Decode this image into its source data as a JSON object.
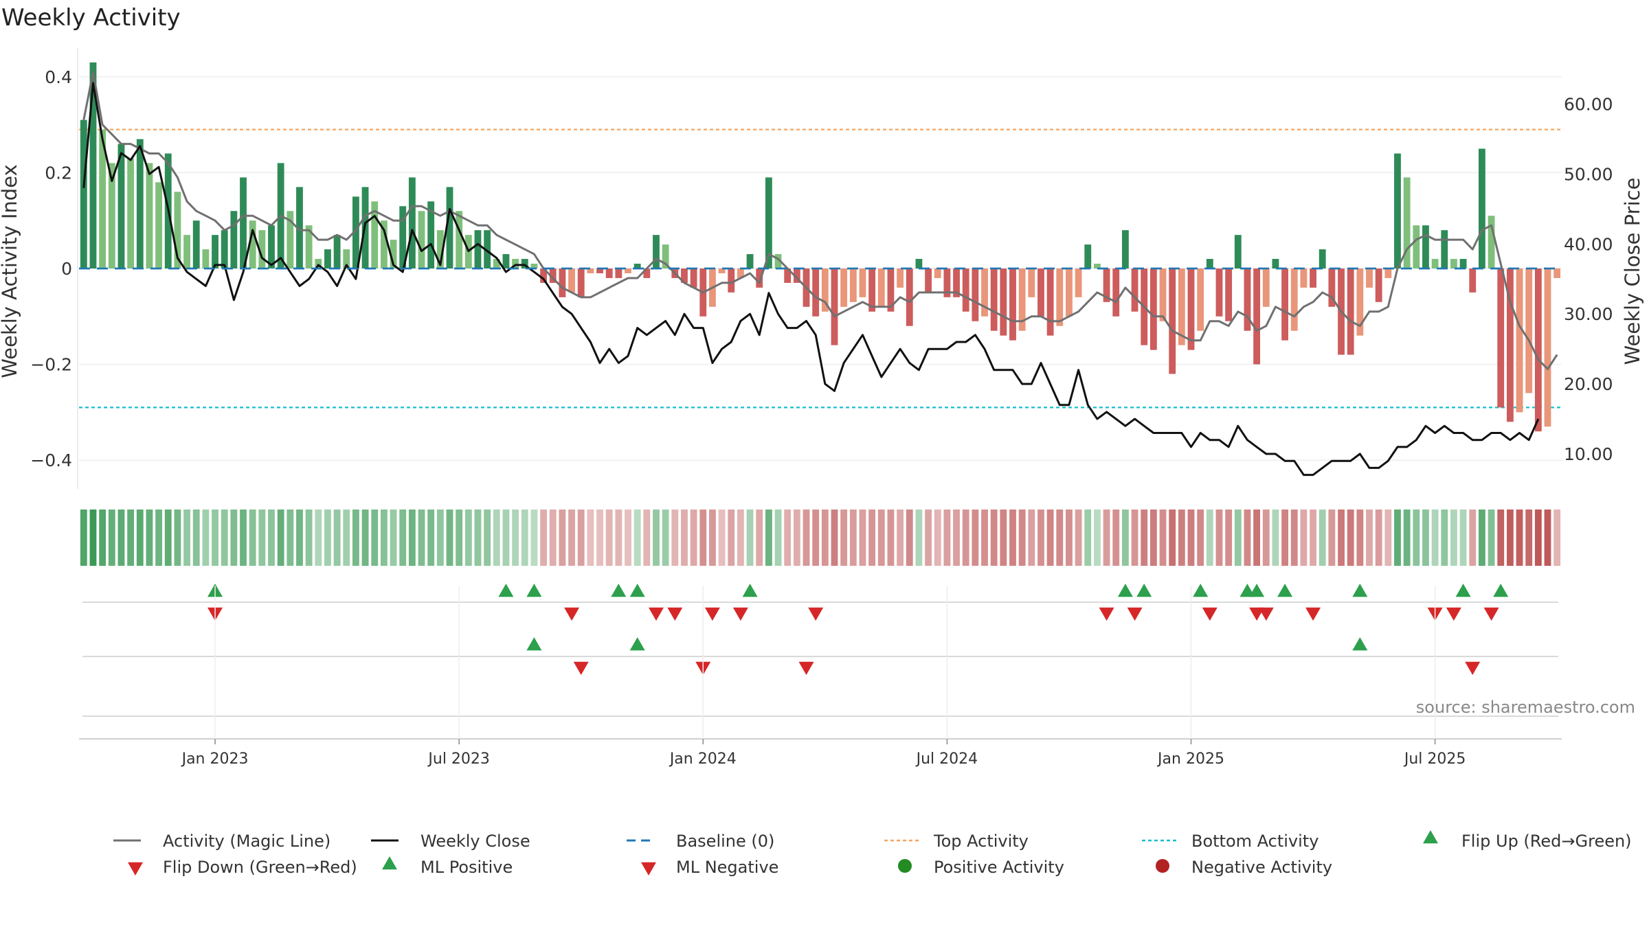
{
  "chart_data": {
    "type": "bar",
    "title": "Weekly Activity",
    "source": "source: sharemaestro.com",
    "ylabel_left": "Weekly Activity Index",
    "ylabel_right": "Weekly Close Price",
    "ylim_left": [
      -0.46,
      0.46
    ],
    "ylim_right": [
      5,
      68
    ],
    "yticks_left": [
      {
        "v": 0.4,
        "label": "0.4"
      },
      {
        "v": 0.2,
        "label": "0.2"
      },
      {
        "v": 0,
        "label": "0"
      },
      {
        "v": -0.2,
        "label": "−0.2"
      },
      {
        "v": -0.4,
        "label": "−0.4"
      }
    ],
    "yticks_right": [
      {
        "v": 60,
        "label": "60.00"
      },
      {
        "v": 50,
        "label": "50.00"
      },
      {
        "v": 40,
        "label": "40.00"
      },
      {
        "v": 30,
        "label": "30.00"
      },
      {
        "v": 20,
        "label": "20.00"
      },
      {
        "v": 10,
        "label": "10.00"
      }
    ],
    "xticks": [
      {
        "week": 14.5,
        "label": "Jan 2023"
      },
      {
        "week": 40.5,
        "label": "Jul 2023"
      },
      {
        "week": 66.5,
        "label": "Jan 2024"
      },
      {
        "week": 92.5,
        "label": "Jul 2024"
      },
      {
        "week": 118.5,
        "label": "Jan 2025"
      },
      {
        "week": 144.5,
        "label": "Jul 2025"
      }
    ],
    "top_activity": 0.29,
    "bottom_activity": -0.29,
    "baseline": 0,
    "weekly_activity": [
      0.31,
      0.43,
      0.29,
      0.22,
      0.26,
      0.23,
      0.27,
      0.22,
      0.18,
      0.24,
      0.16,
      0.07,
      0.1,
      0.04,
      0.07,
      0.08,
      0.12,
      0.19,
      0.1,
      0.08,
      0.09,
      0.22,
      0.12,
      0.17,
      0.09,
      0.02,
      0.04,
      0.07,
      0.04,
      0.15,
      0.17,
      0.14,
      0.1,
      0.06,
      0.13,
      0.19,
      0.12,
      0.14,
      0.08,
      0.17,
      0.12,
      0.07,
      0.08,
      0.08,
      0.02,
      0.03,
      0.02,
      0.02,
      0.01,
      -0.03,
      -0.03,
      -0.06,
      -0.05,
      -0.06,
      -0.01,
      -0.01,
      -0.02,
      -0.02,
      -0.01,
      0.01,
      -0.02,
      0.07,
      0.05,
      -0.02,
      -0.03,
      -0.04,
      -0.1,
      -0.08,
      -0.01,
      -0.05,
      -0.02,
      0.03,
      -0.04,
      0.19,
      0.03,
      -0.03,
      -0.03,
      -0.08,
      -0.1,
      -0.09,
      -0.16,
      -0.08,
      -0.07,
      -0.06,
      -0.09,
      -0.08,
      -0.09,
      -0.04,
      -0.12,
      0.02,
      -0.05,
      -0.02,
      -0.06,
      -0.06,
      -0.09,
      -0.11,
      -0.1,
      -0.13,
      -0.14,
      -0.15,
      -0.13,
      -0.06,
      -0.1,
      -0.14,
      -0.12,
      -0.1,
      -0.06,
      0.05,
      0.01,
      -0.07,
      -0.1,
      0.08,
      -0.09,
      -0.16,
      -0.17,
      -0.11,
      -0.22,
      -0.16,
      -0.17,
      -0.13,
      0.02,
      -0.1,
      -0.11,
      0.07,
      -0.13,
      -0.2,
      -0.08,
      0.02,
      -0.15,
      -0.13,
      -0.04,
      -0.04,
      0.04,
      -0.08,
      -0.18,
      -0.18,
      -0.14,
      -0.04,
      -0.07,
      -0.02,
      0.24,
      0.19,
      0.09,
      0.09,
      0.02,
      0.08,
      0.02,
      0.02,
      -0.05,
      0.25,
      0.11,
      -0.29,
      -0.32,
      -0.3,
      -0.26,
      -0.34,
      -0.33,
      -0.02
    ],
    "magic_line": [
      0.31,
      0.41,
      0.3,
      0.28,
      0.26,
      0.26,
      0.25,
      0.24,
      0.24,
      0.22,
      0.19,
      0.14,
      0.12,
      0.11,
      0.1,
      0.08,
      0.09,
      0.11,
      0.11,
      0.1,
      0.09,
      0.11,
      0.1,
      0.08,
      0.08,
      0.06,
      0.06,
      0.07,
      0.06,
      0.08,
      0.11,
      0.12,
      0.11,
      0.1,
      0.1,
      0.13,
      0.13,
      0.12,
      0.11,
      0.12,
      0.11,
      0.1,
      0.09,
      0.09,
      0.07,
      0.06,
      0.05,
      0.04,
      0.03,
      0.0,
      -0.02,
      -0.04,
      -0.05,
      -0.06,
      -0.06,
      -0.05,
      -0.04,
      -0.03,
      -0.02,
      -0.02,
      0.0,
      0.02,
      0.01,
      -0.01,
      -0.03,
      -0.04,
      -0.05,
      -0.04,
      -0.03,
      -0.03,
      -0.02,
      -0.01,
      -0.03,
      0.03,
      0.02,
      0.0,
      -0.02,
      -0.04,
      -0.06,
      -0.07,
      -0.1,
      -0.09,
      -0.08,
      -0.07,
      -0.08,
      -0.08,
      -0.08,
      -0.06,
      -0.07,
      -0.05,
      -0.05,
      -0.05,
      -0.05,
      -0.05,
      -0.06,
      -0.07,
      -0.08,
      -0.09,
      -0.1,
      -0.11,
      -0.11,
      -0.1,
      -0.1,
      -0.11,
      -0.11,
      -0.1,
      -0.09,
      -0.07,
      -0.05,
      -0.06,
      -0.07,
      -0.04,
      -0.06,
      -0.08,
      -0.1,
      -0.1,
      -0.13,
      -0.14,
      -0.15,
      -0.15,
      -0.11,
      -0.11,
      -0.12,
      -0.09,
      -0.1,
      -0.13,
      -0.12,
      -0.08,
      -0.09,
      -0.1,
      -0.08,
      -0.07,
      -0.05,
      -0.06,
      -0.09,
      -0.11,
      -0.12,
      -0.09,
      -0.09,
      -0.08,
      0.0,
      0.04,
      0.06,
      0.07,
      0.06,
      0.06,
      0.06,
      0.06,
      0.04,
      0.08,
      0.09,
      0.01,
      -0.07,
      -0.12,
      -0.15,
      -0.19,
      -0.21,
      -0.18
    ],
    "weekly_close": [
      48,
      63,
      55,
      49,
      53,
      52,
      54,
      50,
      51,
      45,
      38,
      36,
      35,
      34,
      37,
      37,
      32,
      36,
      42,
      38,
      37,
      38,
      36,
      34,
      35,
      37,
      36,
      34,
      37,
      35,
      43,
      44,
      42,
      37,
      36,
      42,
      39,
      40,
      37,
      45,
      42,
      39,
      40,
      39,
      38,
      36,
      37,
      37,
      36,
      35,
      33,
      31,
      30,
      28,
      26,
      23,
      25,
      23,
      24,
      28,
      27,
      28,
      29,
      27,
      30,
      28,
      28,
      23,
      25,
      26,
      29,
      30,
      27,
      33,
      30,
      28,
      28,
      29,
      27,
      20,
      19,
      23,
      25,
      27,
      24,
      21,
      23,
      25,
      23,
      22,
      25,
      25,
      25,
      26,
      26,
      27,
      25,
      22,
      22,
      22,
      20,
      20,
      23,
      20,
      17,
      17,
      22,
      17,
      15,
      16,
      15,
      14,
      15,
      14,
      13,
      13,
      13,
      13,
      11,
      13,
      12,
      12,
      11,
      14,
      12,
      11,
      10,
      10,
      9,
      9,
      7,
      7,
      8,
      9,
      9,
      9,
      10,
      8,
      8,
      9,
      11,
      11,
      12,
      14,
      13,
      14,
      13,
      13,
      12,
      12,
      13,
      13,
      12,
      13,
      12,
      15
    ]
  },
  "strip": {
    "row1_up": [
      14,
      45,
      48,
      57,
      59,
      71,
      111,
      113,
      119,
      124,
      125,
      128,
      136,
      147,
      151
    ],
    "row1_down": [
      14,
      52,
      61,
      63,
      67,
      70,
      78,
      109,
      112,
      120,
      125,
      126,
      131,
      144,
      146,
      150
    ],
    "row2_up": [
      48,
      59,
      136
    ],
    "row2_down": [
      53,
      66,
      77,
      148
    ]
  },
  "legend": [
    {
      "key": "magic",
      "label": "Activity (Magic Line)"
    },
    {
      "key": "close",
      "label": "Weekly Close"
    },
    {
      "key": "baseline",
      "label": "Baseline (0)"
    },
    {
      "key": "top",
      "label": "Top Activity"
    },
    {
      "key": "bottom",
      "label": "Bottom Activity"
    },
    {
      "key": "flipup",
      "label": "Flip Up (Red→Green)"
    },
    {
      "key": "flipdown",
      "label": "Flip Down (Green→Red)"
    },
    {
      "key": "mlpos",
      "label": "ML Positive"
    },
    {
      "key": "mlneg",
      "label": "ML Negative"
    },
    {
      "key": "posact",
      "label": "Positive Activity"
    },
    {
      "key": "negact",
      "label": "Negative Activity"
    }
  ],
  "colors": {
    "green_dark": "#2e8b57",
    "green_light": "#7fbf7b",
    "red_dark": "#cd5c5c",
    "red_light": "#e9967a",
    "magic_line": "#707070",
    "close_line": "#111111",
    "baseline": "#1f77b4",
    "top": "#f4a460",
    "bottom": "#17becf",
    "marker_up": "#2ca04c",
    "marker_down": "#d62728",
    "pos_dot": "#228b22",
    "neg_dot": "#b22222"
  }
}
